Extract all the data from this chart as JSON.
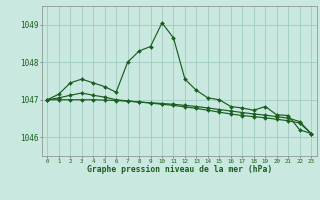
{
  "xlabel": "Graphe pression niveau de la mer (hPa)",
  "background_color": "#c8e8e0",
  "grid_color": "#a0ccc0",
  "line_color": "#1a5e20",
  "xlim": [
    -0.5,
    23.5
  ],
  "ylim": [
    1045.5,
    1049.5
  ],
  "yticks": [
    1046,
    1047,
    1048,
    1049
  ],
  "xtick_labels": [
    "0",
    "1",
    "2",
    "3",
    "4",
    "5",
    "6",
    "7",
    "8",
    "9",
    "10",
    "11",
    "12",
    "13",
    "14",
    "15",
    "16",
    "17",
    "18",
    "19",
    "20",
    "21",
    "22",
    "23"
  ],
  "series1_y": [
    1047.0,
    1047.15,
    1047.45,
    1047.55,
    1047.45,
    1047.35,
    1047.2,
    1048.0,
    1048.3,
    1048.42,
    1049.05,
    1048.65,
    1047.55,
    1047.25,
    1047.05,
    1047.0,
    1046.82,
    1046.78,
    1046.72,
    1046.82,
    1046.6,
    1046.58,
    1046.2,
    1046.1
  ],
  "series2_y": [
    1047.0,
    1047.05,
    1047.12,
    1047.18,
    1047.12,
    1047.07,
    1047.0,
    1046.97,
    1046.94,
    1046.91,
    1046.88,
    1046.85,
    1046.81,
    1046.77,
    1046.72,
    1046.67,
    1046.62,
    1046.58,
    1046.55,
    1046.52,
    1046.48,
    1046.44,
    1046.38,
    1046.1
  ],
  "series3_y": [
    1047.0,
    1047.0,
    1047.0,
    1047.0,
    1047.0,
    1046.99,
    1046.98,
    1046.96,
    1046.94,
    1046.92,
    1046.9,
    1046.88,
    1046.85,
    1046.82,
    1046.78,
    1046.74,
    1046.7,
    1046.66,
    1046.62,
    1046.59,
    1046.55,
    1046.51,
    1046.42,
    1046.1
  ]
}
